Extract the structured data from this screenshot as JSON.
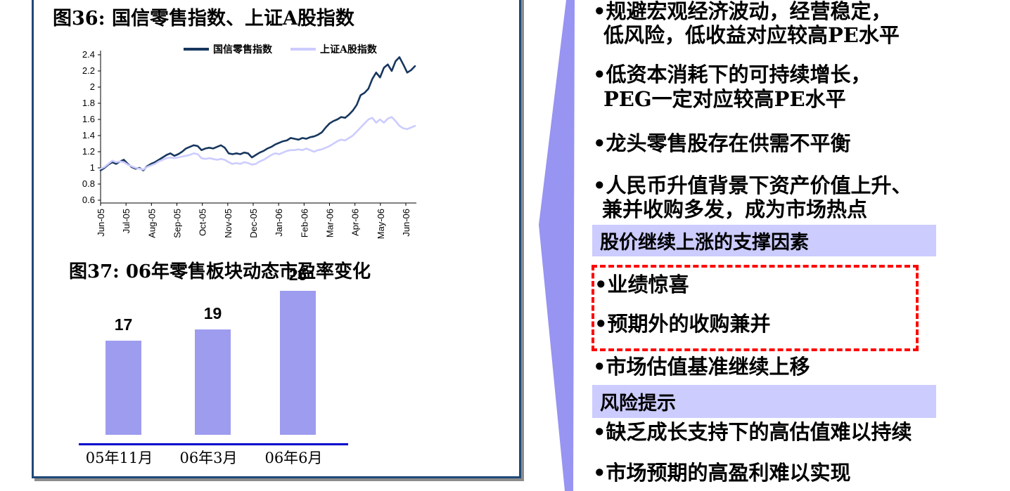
{
  "figures": {
    "fig36": {
      "title": "图36:  国信零售指数、上证A股指数",
      "legend": [
        {
          "label": "国信零售指数",
          "color": "#17375E"
        },
        {
          "label": "上证A股指数",
          "color": "#CCCCFF"
        }
      ],
      "chart_data": {
        "type": "line",
        "x_ticks": [
          "Jun-05",
          "Jul-05",
          "Aug-05",
          "Sep-05",
          "Oct-05",
          "Nov-05",
          "Dec-05",
          "Jan-06",
          "Feb-06",
          "Mar-06",
          "Apr-06",
          "May-06",
          "Jun-06"
        ],
        "y_ticks": [
          "2.4",
          "2.2",
          "2",
          "1.8",
          "1.6",
          "1.4",
          "1.2",
          "1",
          "0.8",
          "0.6"
        ],
        "ylim": [
          0.6,
          2.4
        ],
        "grid": false,
        "legend_position": "top",
        "series": [
          {
            "name": "国信零售指数",
            "color": "#17375E",
            "values": [
              0.97,
              1.0,
              1.04,
              1.07,
              1.05,
              1.08,
              1.1,
              1.05,
              1.01,
              0.99,
              1.0,
              0.97,
              1.02,
              1.05,
              1.07,
              1.1,
              1.13,
              1.16,
              1.18,
              1.15,
              1.17,
              1.2,
              1.24,
              1.26,
              1.28,
              1.27,
              1.22,
              1.24,
              1.25,
              1.24,
              1.26,
              1.28,
              1.25,
              1.18,
              1.17,
              1.18,
              1.17,
              1.19,
              1.18,
              1.13,
              1.16,
              1.19,
              1.21,
              1.24,
              1.26,
              1.29,
              1.31,
              1.33,
              1.34,
              1.37,
              1.36,
              1.35,
              1.37,
              1.36,
              1.38,
              1.39,
              1.41,
              1.44,
              1.5,
              1.55,
              1.58,
              1.6,
              1.63,
              1.62,
              1.66,
              1.71,
              1.78,
              1.9,
              1.93,
              1.98,
              2.1,
              2.18,
              2.12,
              2.24,
              2.28,
              2.2,
              2.32,
              2.37,
              2.28,
              2.18,
              2.21,
              2.26
            ]
          },
          {
            "name": "上证A股指数",
            "color": "#CCCCFF",
            "values": [
              0.99,
              1.01,
              1.05,
              1.09,
              1.07,
              1.08,
              1.07,
              1.04,
              1.02,
              1.0,
              0.99,
              0.98,
              1.01,
              1.03,
              1.05,
              1.08,
              1.1,
              1.12,
              1.13,
              1.12,
              1.13,
              1.14,
              1.15,
              1.16,
              1.18,
              1.17,
              1.12,
              1.11,
              1.12,
              1.11,
              1.1,
              1.11,
              1.1,
              1.07,
              1.05,
              1.06,
              1.05,
              1.07,
              1.06,
              1.04,
              1.05,
              1.08,
              1.1,
              1.13,
              1.16,
              1.18,
              1.17,
              1.19,
              1.21,
              1.22,
              1.22,
              1.23,
              1.22,
              1.24,
              1.22,
              1.2,
              1.22,
              1.23,
              1.25,
              1.27,
              1.3,
              1.33,
              1.35,
              1.34,
              1.37,
              1.4,
              1.45,
              1.5,
              1.55,
              1.6,
              1.62,
              1.56,
              1.6,
              1.56,
              1.61,
              1.63,
              1.58,
              1.52,
              1.49,
              1.48,
              1.5,
              1.52
            ]
          }
        ]
      }
    },
    "fig37": {
      "title": "图37:  06年零售板块动态市盈率变化",
      "chart_data": {
        "type": "bar",
        "categories": [
          "05年11月",
          "06年3月",
          "06年6月"
        ],
        "values": [
          17,
          19,
          26
        ],
        "bar_color": "#9E9CEF",
        "axis_color": "#0000CC"
      }
    }
  },
  "arrow": {
    "color": "#9794F2"
  },
  "panel": {
    "border_color": "#1F4977",
    "shadow_color": "#8C8C8C"
  },
  "right_panel": {
    "highlight_color": "#CCCCFF",
    "box_border_color": "#FF0000",
    "bullets_top": [
      {
        "l1": "•规避宏观经济波动，经营稳定，",
        "l2": "低风险，低收益对应较高PE水平"
      },
      {
        "l1": "•低资本消耗下的可持续增长，",
        "l2": "PEG一定对应较高PE水平"
      },
      {
        "l1": "•龙头零售股存在供需不平衡"
      },
      {
        "l1": "•人民币升值背景下资产价值上升、",
        "l2": "兼并收购多发，成为市场热点"
      }
    ],
    "header1": "股价继续上涨的支撑因素",
    "boxed_bullets": [
      "•业绩惊喜",
      "•预期外的收购兼并"
    ],
    "bullet_mid": "•市场估值基准继续上移",
    "header2": "风险提示",
    "bullets_bottom": [
      "•缺乏成长支持下的高估值难以持续",
      "•市场预期的高盈利难以实现"
    ]
  }
}
